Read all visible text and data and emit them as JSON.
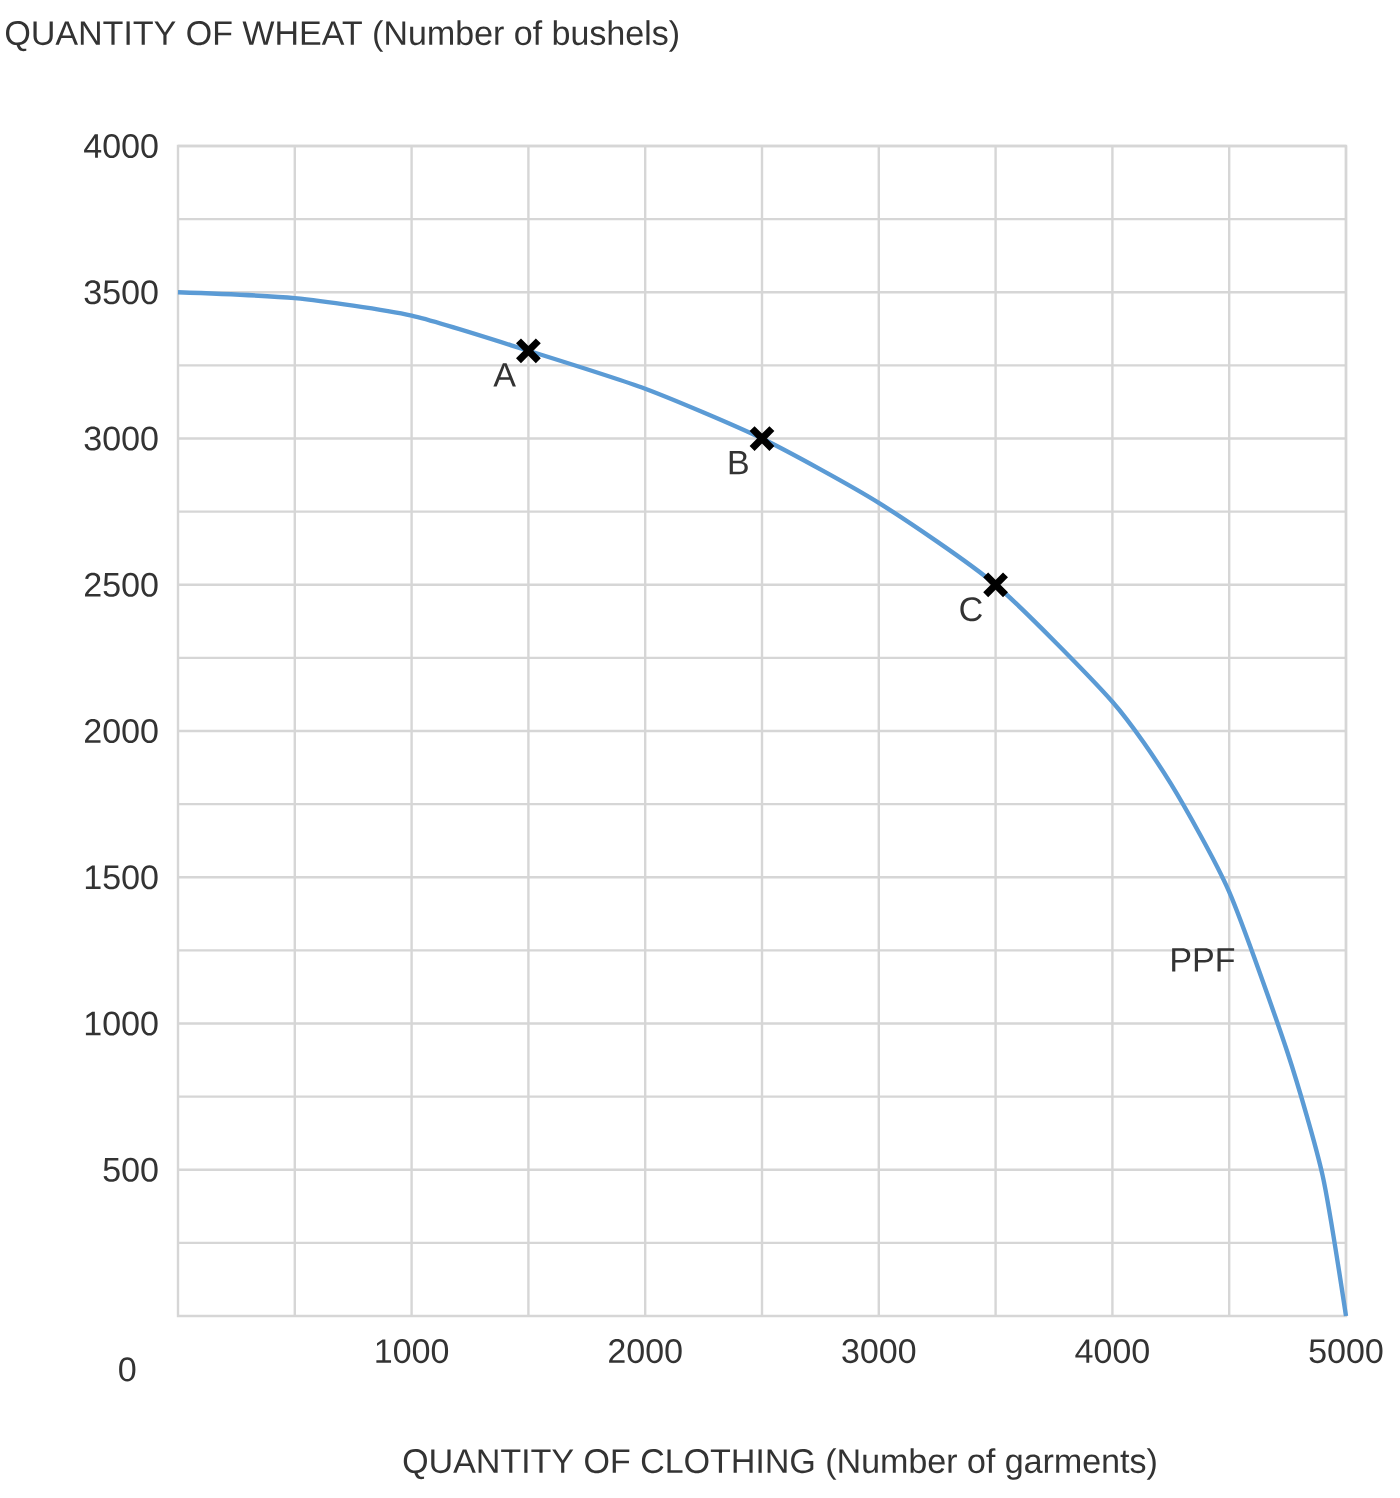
{
  "chart_data": {
    "type": "line",
    "xlabel": "QUANTITY OF CLOTHING (Number of garments)",
    "ylabel": "QUANTITY OF WHEAT (Number of bushels)",
    "xlim": [
      0,
      5000
    ],
    "ylim": [
      0,
      4000
    ],
    "xticks": [
      {
        "value": 500,
        "label": null
      },
      1000,
      {
        "value": 1500,
        "label": null
      },
      2000,
      {
        "value": 2500,
        "label": null
      },
      3000,
      {
        "value": 3500,
        "label": null
      },
      4000,
      {
        "value": 4500,
        "label": null
      },
      5000
    ],
    "yticks": [
      {
        "value": 250,
        "label": null
      },
      500,
      {
        "value": 750,
        "label": null
      },
      1000,
      {
        "value": 1250,
        "label": null
      },
      1500,
      {
        "value": 1750,
        "label": null
      },
      2000,
      {
        "value": 2250,
        "label": null
      },
      2500,
      {
        "value": 2750,
        "label": null
      },
      3000,
      {
        "value": 3250,
        "label": null
      },
      3500,
      {
        "value": 3750,
        "label": null
      },
      4000
    ],
    "grid": true,
    "series": [
      {
        "color": "#5b9bd5",
        "marker": "none",
        "line_style": "solid",
        "x": [
          0,
          500,
          1000,
          1500,
          2000,
          2500,
          3000,
          3500,
          4000,
          4250,
          4500,
          4750,
          4900,
          5000
        ],
        "values": [
          3500,
          3480,
          3420,
          3300,
          3170,
          3000,
          2780,
          2500,
          2100,
          1820,
          1450,
          900,
          480,
          0
        ]
      },
      {
        "type": "scatter",
        "color": "#000000",
        "marker": "cross",
        "x": [
          1500,
          2500,
          3500
        ],
        "values": [
          3300,
          3000,
          2500
        ]
      }
    ],
    "annotations": [
      {
        "text": "A",
        "x": 1500,
        "y": 3300
      },
      {
        "text": "B",
        "x": 2500,
        "y": 3000
      },
      {
        "text": "C",
        "x": 3500,
        "y": 2500
      },
      {
        "text": "PPF",
        "x": 4580,
        "y": 1300
      },
      "0"
    ]
  }
}
